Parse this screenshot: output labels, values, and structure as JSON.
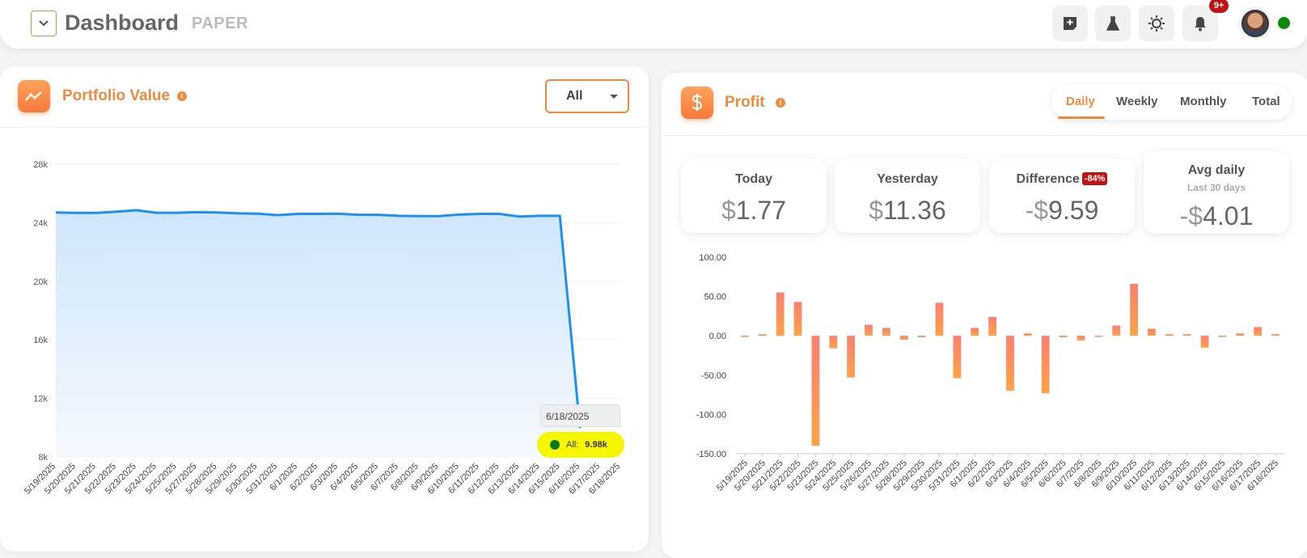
{
  "header": {
    "title": "Dashboard",
    "mode": "PAPER",
    "notification_count": "9+",
    "toolbar_icons": [
      "add-note-icon",
      "flask-icon",
      "sun-icon",
      "bell-icon"
    ]
  },
  "portfolio": {
    "title": "Portfolio Value",
    "filter_value": "All",
    "tooltip": {
      "date": "6/18/2025",
      "series": "All:",
      "value": "9.98k"
    }
  },
  "profit": {
    "title": "Profit",
    "tabs": [
      "Daily",
      "Weekly",
      "Monthly",
      "Total"
    ],
    "active_tab": "Daily",
    "stats": {
      "today": {
        "label": "Today",
        "value": "1.77"
      },
      "yesterday": {
        "label": "Yesterday",
        "value": "11.36"
      },
      "difference": {
        "label": "Difference",
        "badge": "-84%",
        "value": "9.59",
        "sign": "-"
      },
      "avg_daily": {
        "label": "Avg daily",
        "sub": "Last 30 days",
        "value": "4.01",
        "sign": "-"
      }
    }
  },
  "colors": {
    "accent": "#f08a3c",
    "line": "#1e90f0",
    "negative": "#c01414"
  },
  "chart_data": [
    {
      "type": "area",
      "title": "Portfolio Value",
      "categories": [
        "5/19/2025",
        "5/20/2025",
        "5/21/2025",
        "5/22/2025",
        "5/23/2025",
        "5/24/2025",
        "5/25/2025",
        "5/27/2025",
        "5/28/2025",
        "5/29/2025",
        "5/30/2025",
        "5/31/2025",
        "6/1/2025",
        "6/2/2025",
        "6/3/2025",
        "6/4/2025",
        "6/5/2025",
        "6/7/2025",
        "6/8/2025",
        "6/9/2025",
        "6/10/2025",
        "6/11/2025",
        "6/12/2025",
        "6/13/2025",
        "6/14/2025",
        "6/15/2025",
        "6/16/2025",
        "6/17/2025",
        "6/18/2025"
      ],
      "values": [
        24700,
        24670,
        24670,
        24750,
        24850,
        24680,
        24680,
        24720,
        24700,
        24640,
        24620,
        24520,
        24600,
        24600,
        24620,
        24540,
        24540,
        24470,
        24450,
        24450,
        24550,
        24600,
        24600,
        24420,
        24470,
        24470,
        9980,
        9980,
        9980
      ],
      "yticks": [
        "28k",
        "24k",
        "20k",
        "16k",
        "12k",
        "8k"
      ],
      "ylim": [
        8000,
        28000
      ],
      "grid": true
    },
    {
      "type": "bar",
      "title": "Profit",
      "categories": [
        "5/19/2025",
        "5/20/2025",
        "5/21/2025",
        "5/22/2025",
        "5/23/2025",
        "5/24/2025",
        "5/25/2025",
        "5/26/2025",
        "5/27/2025",
        "5/28/2025",
        "5/29/2025",
        "5/30/2025",
        "5/31/2025",
        "6/1/2025",
        "6/2/2025",
        "6/3/2025",
        "6/4/2025",
        "6/5/2025",
        "6/6/2025",
        "6/7/2025",
        "6/8/2025",
        "6/9/2025",
        "6/10/2025",
        "6/11/2025",
        "6/12/2025",
        "6/13/2025",
        "6/14/2025",
        "6/15/2025",
        "6/16/2025",
        "6/17/2025",
        "6/18/2025"
      ],
      "values": [
        -1,
        2,
        55,
        43,
        -140,
        -16,
        -53,
        14,
        10,
        -5,
        -2,
        42,
        -54,
        10,
        24,
        -70,
        3,
        -73,
        -2,
        -6,
        -1,
        13,
        66,
        9,
        2,
        2,
        -15,
        0,
        3,
        11,
        2
      ],
      "yticks": [
        "100.00",
        "50.00",
        "0.00",
        "-50.00",
        "-100.00",
        "-150.00"
      ],
      "ylim": [
        -150,
        100
      ],
      "grid": false
    }
  ]
}
